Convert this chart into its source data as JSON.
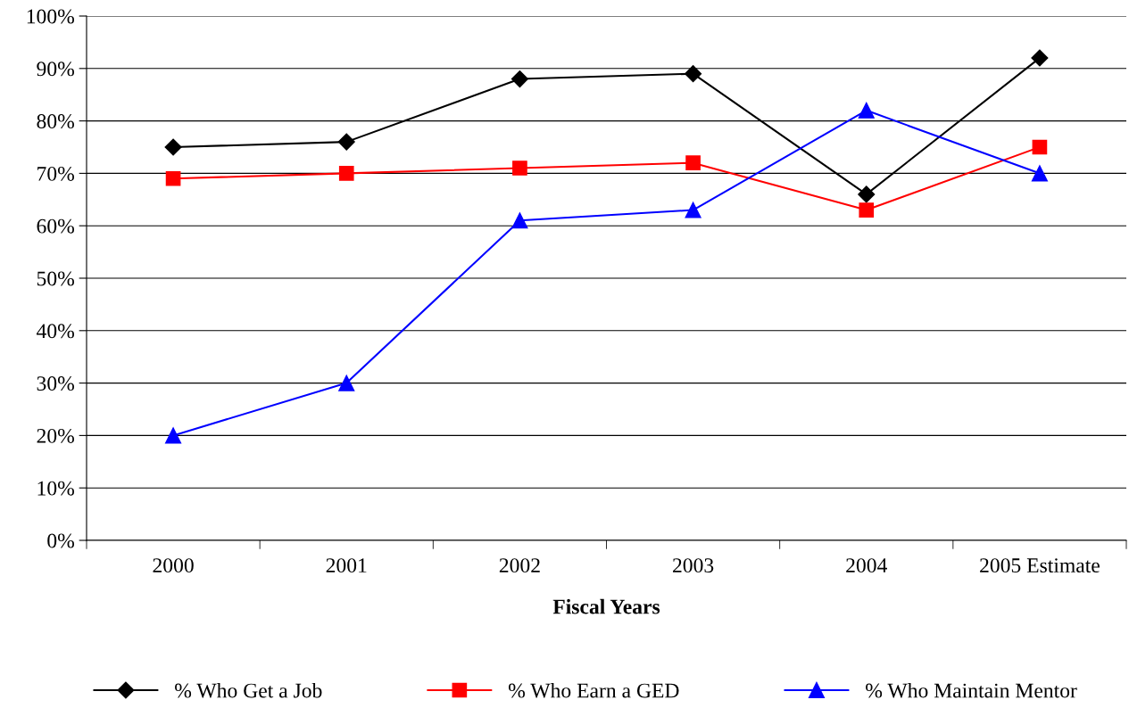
{
  "chart_data": {
    "type": "line",
    "xlabel": "Fiscal Years",
    "categories": [
      "2000",
      "2001",
      "2002",
      "2003",
      "2004",
      "2005 Estimate"
    ],
    "series": [
      {
        "name": "% Who Get a Job",
        "color": "#000000",
        "marker": "diamond",
        "values": [
          75,
          76,
          88,
          89,
          66,
          92
        ]
      },
      {
        "name": "% Who Earn a GED",
        "color": "#ff0000",
        "marker": "square",
        "values": [
          69,
          70,
          71,
          72,
          63,
          75
        ]
      },
      {
        "name": "% Who Maintain Mentor",
        "color": "#0000ff",
        "marker": "triangle",
        "values": [
          20,
          30,
          61,
          63,
          82,
          70
        ]
      }
    ],
    "ylim": [
      0,
      100
    ],
    "yticks": [
      {
        "value": 0,
        "label": "0%"
      },
      {
        "value": 10,
        "label": "10%"
      },
      {
        "value": 20,
        "label": "20%"
      },
      {
        "value": 30,
        "label": "30%"
      },
      {
        "value": 40,
        "label": "40%"
      },
      {
        "value": 50,
        "label": "50%"
      },
      {
        "value": 60,
        "label": "60%"
      },
      {
        "value": 70,
        "label": "70%"
      },
      {
        "value": 80,
        "label": "80%"
      },
      {
        "value": 90,
        "label": "90%"
      },
      {
        "value": 100,
        "label": "100%"
      }
    ],
    "grid": "y",
    "legend": "bottom",
    "line_style": "solid"
  }
}
